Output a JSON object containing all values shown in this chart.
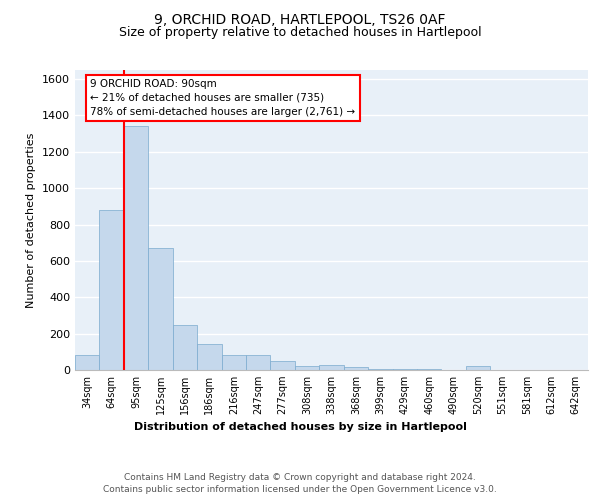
{
  "title1": "9, ORCHID ROAD, HARTLEPOOL, TS26 0AF",
  "title2": "Size of property relative to detached houses in Hartlepool",
  "xlabel": "Distribution of detached houses by size in Hartlepool",
  "ylabel": "Number of detached properties",
  "categories": [
    "34sqm",
    "64sqm",
    "95sqm",
    "125sqm",
    "156sqm",
    "186sqm",
    "216sqm",
    "247sqm",
    "277sqm",
    "308sqm",
    "338sqm",
    "368sqm",
    "399sqm",
    "429sqm",
    "460sqm",
    "490sqm",
    "520sqm",
    "551sqm",
    "581sqm",
    "612sqm",
    "642sqm"
  ],
  "values": [
    80,
    880,
    1340,
    670,
    245,
    145,
    85,
    82,
    52,
    22,
    25,
    15,
    8,
    8,
    8,
    0,
    22,
    0,
    0,
    0,
    0
  ],
  "bar_color": "#c5d8ec",
  "bar_edge_color": "#7aaace",
  "red_line_index": 2,
  "property_sqm": 90,
  "pct_smaller": 21,
  "n_smaller": 735,
  "pct_semi_larger": 78,
  "n_semi_larger": 2761,
  "ylim": [
    0,
    1650
  ],
  "yticks": [
    0,
    200,
    400,
    600,
    800,
    1000,
    1200,
    1400,
    1600
  ],
  "footer1": "Contains HM Land Registry data © Crown copyright and database right 2024.",
  "footer2": "Contains public sector information licensed under the Open Government Licence v3.0.",
  "bg_color": "#e8f0f8",
  "grid_color": "#ffffff",
  "title1_fontsize": 10,
  "title2_fontsize": 9
}
